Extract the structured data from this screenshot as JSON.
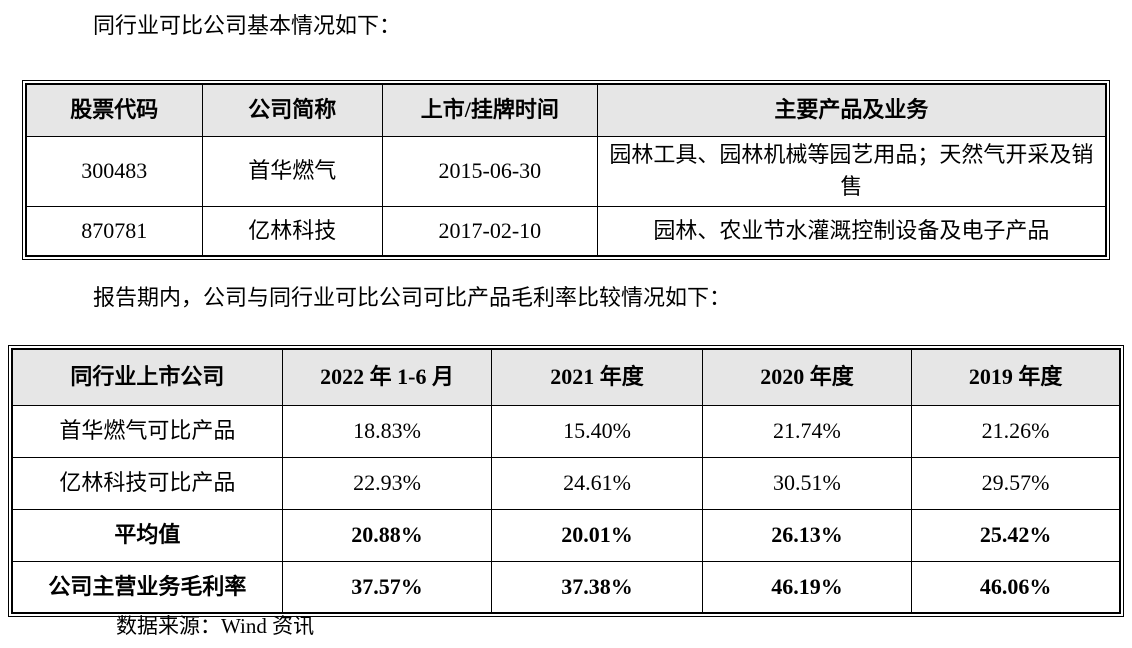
{
  "intro": {
    "companies_line": "同行业可比公司基本情况如下：",
    "margin_line": "报告期内，公司与同行业可比公司可比产品毛利率比较情况如下：",
    "source_note": "数据来源：Wind 资讯"
  },
  "companies_table": {
    "headers": [
      "股票代码",
      "公司简称",
      "上市/挂牌时间",
      "主要产品及业务"
    ],
    "rows": [
      [
        "300483",
        "首华燃气",
        "2015-06-30",
        "园林工具、园林机械等园艺用品；天然气开采及销售"
      ],
      [
        "870781",
        "亿林科技",
        "2017-02-10",
        "园林、农业节水灌溉控制设备及电子产品"
      ]
    ]
  },
  "margin_table": {
    "headers": [
      "同行业上市公司",
      "2022 年 1-6 月",
      "2021 年度",
      "2020 年度",
      "2019 年度"
    ],
    "rows": [
      {
        "label": "首华燃气可比产品",
        "values": [
          "18.83%",
          "15.40%",
          "21.74%",
          "21.26%"
        ],
        "emphasis": false
      },
      {
        "label": "亿林科技可比产品",
        "values": [
          "22.93%",
          "24.61%",
          "30.51%",
          "29.57%"
        ],
        "emphasis": false
      },
      {
        "label": "平均值",
        "values": [
          "20.88%",
          "20.01%",
          "26.13%",
          "25.42%"
        ],
        "emphasis": true
      },
      {
        "label": "公司主营业务毛利率",
        "values": [
          "37.57%",
          "37.38%",
          "46.19%",
          "46.06%"
        ],
        "emphasis": true
      }
    ]
  },
  "colors": {
    "header_background": "#e6e6e6",
    "border": "#000000",
    "text": "#000000"
  }
}
